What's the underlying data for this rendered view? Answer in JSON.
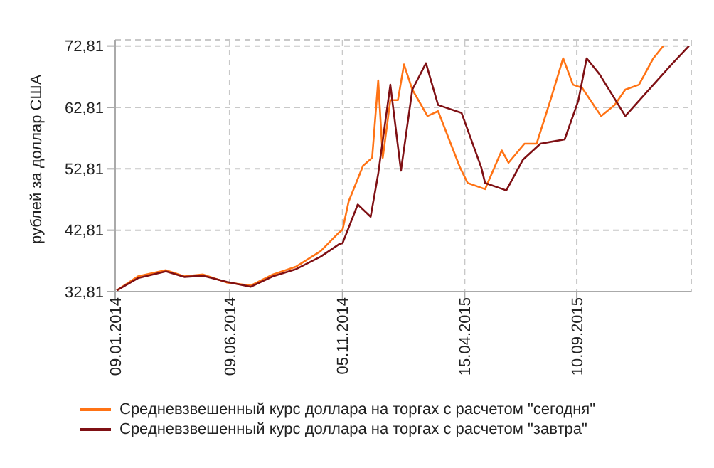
{
  "chart_data": {
    "type": "line",
    "ylabel": "рублей за доллар США",
    "xlim": [
      "2014-01-09",
      "2016-02-08"
    ],
    "xticks": [
      {
        "value": "2014-01-09",
        "label": "09.01.2014"
      },
      {
        "value": "2014-06-09",
        "label": "09.06.2014"
      },
      {
        "value": "2014-11-05",
        "label": "05.11.2014"
      },
      {
        "value": "2015-04-15",
        "label": "15.04.2015"
      },
      {
        "value": "2015-09-10",
        "label": "10.09.2015"
      }
    ],
    "ylim": [
      32.81,
      73.81
    ],
    "yticks": [
      {
        "value": 32.81,
        "label": "32,81"
      },
      {
        "value": 42.81,
        "label": "42,81"
      },
      {
        "value": 52.81,
        "label": "52,81"
      },
      {
        "value": 62.81,
        "label": "62,81"
      },
      {
        "value": 72.81,
        "label": "72,81"
      }
    ],
    "grid": true,
    "legend": "bottom",
    "marker": "none",
    "line_style": "solid",
    "series": [
      {
        "name": "Средневзвешенный курс доллара на торгах с расчетом \"сегодня\"",
        "color": "#ff7315",
        "x": [
          "2014-01-11",
          "2014-02-08",
          "2014-03-17",
          "2014-04-10",
          "2014-05-05",
          "2014-06-05",
          "2014-07-07",
          "2014-08-05",
          "2014-09-05",
          "2014-10-07",
          "2014-10-31",
          "2014-11-05",
          "2014-11-13",
          "2014-12-02",
          "2014-12-14",
          "2014-12-22",
          "2014-12-28",
          "2015-01-07",
          "2015-01-17",
          "2015-01-25",
          "2015-02-05",
          "2015-02-25",
          "2015-03-11",
          "2015-04-09",
          "2015-04-19",
          "2015-05-12",
          "2015-06-03",
          "2015-06-12",
          "2015-07-03",
          "2015-07-19",
          "2015-08-06",
          "2015-08-23",
          "2015-09-05",
          "2015-09-17",
          "2015-10-12",
          "2015-10-30",
          "2015-11-13",
          "2015-12-01",
          "2015-12-20",
          "2016-01-02"
        ],
        "values": [
          33.0,
          35.3,
          36.3,
          35.3,
          35.6,
          34.3,
          33.8,
          35.6,
          36.9,
          39.4,
          42.4,
          42.9,
          47.5,
          53.3,
          54.6,
          67.2,
          54.6,
          64.0,
          64.0,
          69.8,
          65.7,
          61.4,
          62.2,
          53.0,
          50.5,
          49.5,
          55.8,
          53.8,
          56.9,
          56.9,
          63.9,
          70.8,
          66.5,
          66.0,
          61.4,
          63.2,
          65.7,
          66.5,
          70.8,
          72.8
        ]
      },
      {
        "name": "Средневзвешенный курс доллара на торгах с расчетом \"завтра\"",
        "color": "#7f1014",
        "x": [
          "2014-01-11",
          "2014-02-08",
          "2014-03-17",
          "2014-04-10",
          "2014-05-05",
          "2014-06-05",
          "2014-07-07",
          "2014-08-05",
          "2014-09-05",
          "2014-10-07",
          "2014-10-31",
          "2014-11-05",
          "2014-11-25",
          "2014-12-12",
          "2014-12-22",
          "2015-01-07",
          "2015-01-21",
          "2015-02-05",
          "2015-02-23",
          "2015-03-11",
          "2015-04-11",
          "2015-05-07",
          "2015-05-12",
          "2015-06-09",
          "2015-07-01",
          "2015-07-24",
          "2015-08-25",
          "2015-09-12",
          "2015-09-23",
          "2015-10-10",
          "2015-11-13",
          "2015-12-20",
          "2016-01-13",
          "2016-02-05"
        ],
        "values": [
          33.0,
          35.0,
          36.1,
          35.2,
          35.4,
          34.4,
          33.6,
          35.3,
          36.5,
          38.5,
          40.5,
          40.7,
          47.0,
          45.0,
          52.0,
          66.5,
          52.5,
          65.7,
          70.0,
          63.2,
          61.9,
          53.0,
          50.5,
          49.3,
          54.3,
          56.9,
          57.6,
          63.9,
          70.8,
          68.2,
          61.4,
          66.5,
          69.8,
          72.8
        ]
      }
    ]
  }
}
